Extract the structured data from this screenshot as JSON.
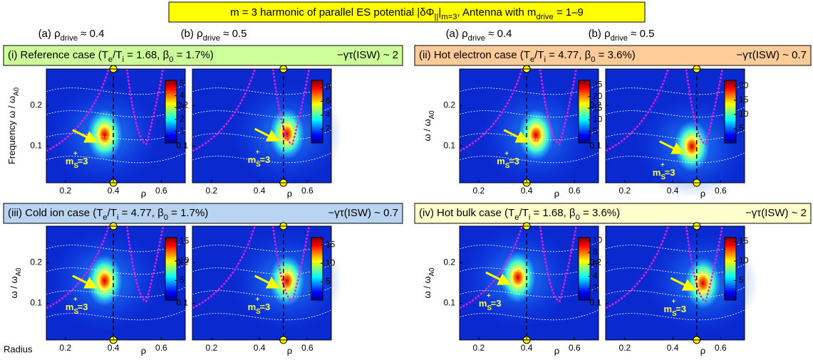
{
  "figure": {
    "title": [
      "m = 3 harmonic of parallel ES potential |δΦ",
      "||",
      "|",
      "m=3",
      ",  Antenna with m",
      "drive",
      " = 1–9"
    ],
    "column_headers": [
      [
        "(a) ρ",
        "drive",
        " ≈ 0.4"
      ],
      [
        "(b) ρ",
        "drive",
        " ≈ 0.5"
      ],
      [
        "(a) ρ",
        "drive",
        " ≈ 0.4"
      ],
      [
        "(b) ρ",
        "drive",
        " ≈ 0.5"
      ]
    ],
    "radius_label": "Radius",
    "axes": {
      "xlabel": "ρ",
      "xlim": [
        0.12,
        0.7
      ],
      "ylim": [
        0.01,
        0.29
      ],
      "xticks": [
        0.2,
        0.4,
        0.6
      ],
      "yticks": [
        0.1,
        0.2
      ]
    },
    "annotation": {
      "base": "m",
      "sub": "S",
      "sup": "+",
      "rest": "=3"
    },
    "groups": [
      {
        "header": [
          "(i) Reference case (T",
          "e",
          "/T",
          "i",
          " = 1.68, β",
          "0",
          " = 1.7%)"
        ],
        "gamma": "−γτ(ISW) ~ 2",
        "ylabel": [
          "Frequency ω / ω",
          "A0"
        ],
        "plots": [
          {
            "clim": [
              0,
              5.3
            ],
            "cticks": [
              1,
              2,
              3,
              4,
              5
            ]
          },
          {
            "clim": [
              0,
              9
            ],
            "cticks": [
              2,
              4,
              6,
              8
            ]
          }
        ]
      },
      {
        "header": [
          "(ii) Hot electron case (T",
          "e",
          "/T",
          "i",
          " = 4.77, β",
          "0",
          " = 3.6%)"
        ],
        "gamma": "−γτ(ISW) ~ 0.7",
        "ylabel": [
          "ω / ω",
          "A0"
        ],
        "plots": [
          {
            "clim": [
              0,
              27
            ],
            "cticks": [
              5,
              10,
              15,
              20,
              25
            ]
          },
          {
            "clim": [
              0,
              22
            ],
            "cticks": [
              5,
              10,
              15,
              20
            ]
          }
        ]
      },
      {
        "header": [
          "(iii) Cold ion case (T",
          "e",
          "/T",
          "i",
          " = 4.77, β",
          "0",
          " = 1.7%)"
        ],
        "gamma": "−γτ(ISW) ~ 0.7",
        "ylabel": [
          "ω / ω",
          "A0"
        ],
        "plots": [
          {
            "clim": [
              0,
              16
            ],
            "cticks": [
              5,
              10,
              15
            ]
          },
          {
            "clim": [
              0,
              17
            ],
            "cticks": [
              5,
              10,
              15
            ]
          }
        ]
      },
      {
        "header": [
          "(iv) Hot bulk case (T",
          "e",
          "/T",
          "i",
          " = 1.68, β",
          "0",
          " = 3.6%)"
        ],
        "gamma": "−γτ(ISW) ~ 2",
        "ylabel": [
          "ω / ω",
          "A0"
        ],
        "plots": [
          {
            "clim": [
              0,
              10.5
            ],
            "cticks": [
              2,
              4,
              6,
              8,
              10
            ]
          },
          {
            "clim": [
              0,
              16
            ],
            "cticks": [
              5,
              10,
              15
            ]
          }
        ]
      }
    ]
  }
}
